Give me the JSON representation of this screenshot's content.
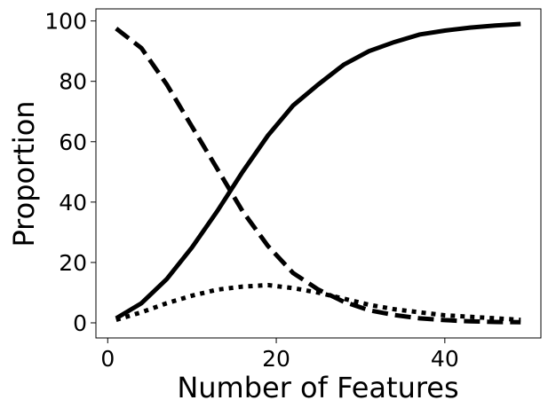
{
  "chart_data": {
    "type": "line",
    "xlabel": "Number of Features",
    "ylabel": "Proportion",
    "x": [
      1,
      4,
      7,
      10,
      13,
      16,
      19,
      22,
      25,
      28,
      31,
      34,
      37,
      40,
      43,
      46,
      49
    ],
    "series": [
      {
        "color": "#000000",
        "style": "solid",
        "values": [
          1.5,
          6.5,
          14.5,
          25,
          37,
          50,
          62,
          72,
          79,
          85.5,
          90,
          93,
          95.5,
          96.8,
          97.8,
          98.5,
          99
        ]
      },
      {
        "color": "#000000",
        "style": "dashed",
        "values": [
          97.5,
          91,
          79,
          65,
          51,
          37,
          25.5,
          16.5,
          11,
          7,
          4.2,
          2.6,
          1.5,
          0.9,
          0.5,
          0.3,
          0.2
        ]
      },
      {
        "color": "#000000",
        "style": "dotted",
        "values": [
          1,
          3.5,
          6.5,
          9,
          11,
          12,
          12.5,
          11.5,
          10,
          8,
          6,
          4.5,
          3.5,
          2.5,
          2,
          1.5,
          1
        ]
      }
    ],
    "xlim": [
      -1.4,
      51.4
    ],
    "ylim": [
      -5,
      104
    ],
    "xticks": [
      0,
      20,
      40
    ],
    "yticks": [
      0,
      20,
      40,
      60,
      80,
      100
    ]
  }
}
